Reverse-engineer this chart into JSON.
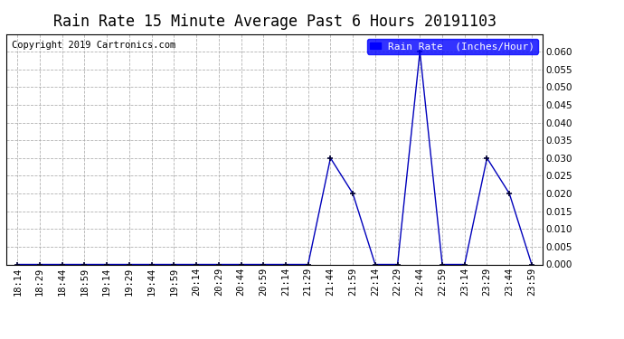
{
  "title": "Rain Rate 15 Minute Average Past 6 Hours 20191103",
  "copyright": "Copyright 2019 Cartronics.com",
  "legend_label": "Rain Rate  (Inches/Hour)",
  "line_color": "#0000bb",
  "marker": "+",
  "marker_color": "#000033",
  "background_color": "#ffffff",
  "grid_color": "#aaaaaa",
  "x_labels": [
    "18:14",
    "18:29",
    "18:44",
    "18:59",
    "19:14",
    "19:29",
    "19:44",
    "19:59",
    "20:14",
    "20:29",
    "20:44",
    "20:59",
    "21:14",
    "21:29",
    "21:44",
    "21:59",
    "22:14",
    "22:29",
    "22:44",
    "22:59",
    "23:14",
    "23:29",
    "23:44",
    "23:59"
  ],
  "y_values": [
    0.0,
    0.0,
    0.0,
    0.0,
    0.0,
    0.0,
    0.0,
    0.0,
    0.0,
    0.0,
    0.0,
    0.0,
    0.0,
    0.0,
    0.03,
    0.02,
    0.0,
    0.0,
    0.06,
    0.0,
    0.0,
    0.03,
    0.02,
    0.0
  ],
  "ylim": [
    0.0,
    0.065
  ],
  "yticks": [
    0.0,
    0.005,
    0.01,
    0.015,
    0.02,
    0.025,
    0.03,
    0.035,
    0.04,
    0.045,
    0.05,
    0.055,
    0.06
  ],
  "title_fontsize": 12,
  "tick_fontsize": 7.5,
  "legend_fontsize": 8,
  "copyright_fontsize": 7.5
}
